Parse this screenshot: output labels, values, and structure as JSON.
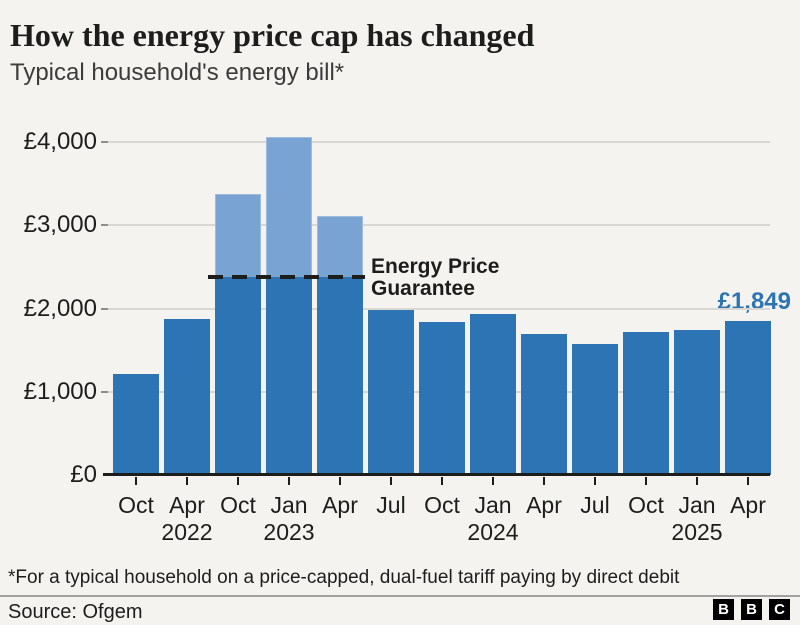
{
  "header": {
    "title": "How the energy price cap has changed",
    "subtitle": "Typical household's energy bill*"
  },
  "chart_data": {
    "type": "bar",
    "title": "How the energy price cap has changed",
    "subtitle": "Typical household's energy bill*",
    "ylabel": "",
    "ylim": [
      0,
      4000
    ],
    "ytick_step": 1000,
    "ytick_labels": [
      "£0",
      "£1,000",
      "£2,000",
      "£3,000",
      "£4,000"
    ],
    "grid": true,
    "bars": [
      {
        "month": "Oct",
        "paid": 1216
      },
      {
        "month": "Apr",
        "year": "2022",
        "paid": 1877
      },
      {
        "month": "Oct",
        "paid": 2380,
        "cap": 3375
      },
      {
        "month": "Jan",
        "year": "2023",
        "paid": 2380,
        "cap": 4059
      },
      {
        "month": "Apr",
        "paid": 2380,
        "cap": 3116
      },
      {
        "month": "Jul",
        "paid": 1976
      },
      {
        "month": "Oct",
        "paid": 1834
      },
      {
        "month": "Jan",
        "year": "2024",
        "paid": 1928
      },
      {
        "month": "Apr",
        "paid": 1690
      },
      {
        "month": "Jul",
        "paid": 1568
      },
      {
        "month": "Oct",
        "paid": 1717
      },
      {
        "month": "Jan",
        "year": "2025",
        "paid": 1738
      },
      {
        "month": "Apr",
        "paid": 1849
      }
    ],
    "guarantee": {
      "value": 2380,
      "label_line1": "Energy Price",
      "label_line2": "Guarantee"
    },
    "annotation": {
      "text": "£1,849",
      "bar_index": 12
    }
  },
  "colors": {
    "background": "#f4f3f0",
    "bar_dark": "#2d74b4",
    "bar_light": "#79a3d2",
    "accent_label": "#2d74b4",
    "gridline": "#d8d7d4",
    "axis": "#1d1d1b"
  },
  "footnote": "*For a typical household on a price-capped, dual-fuel tariff paying by direct debit",
  "footer": {
    "source": "Source: Ofgem",
    "logo_letters": [
      "B",
      "B",
      "C"
    ]
  }
}
